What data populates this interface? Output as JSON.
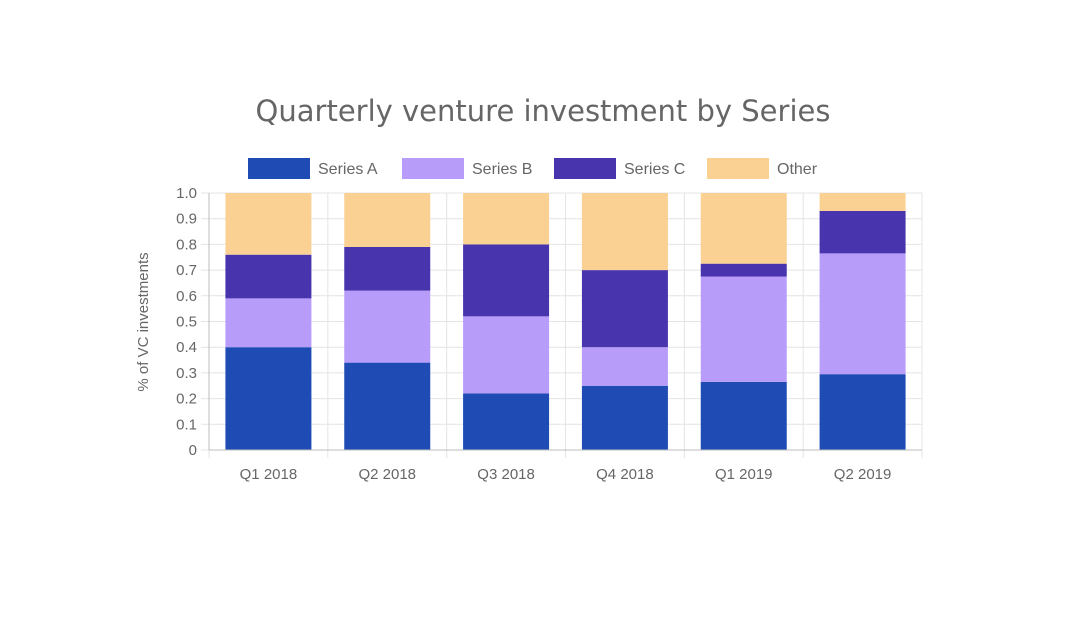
{
  "chart_data": {
    "type": "bar",
    "stacked": true,
    "title": "Quarterly venture investment by Series",
    "ylabel": "% of VC investments",
    "xlabel": "",
    "categories": [
      "Q1 2018",
      "Q2 2018",
      "Q3 2018",
      "Q4 2018",
      "Q1 2019",
      "Q2 2019"
    ],
    "ylim": [
      0,
      1.0
    ],
    "yticks": [
      "0",
      "0.1",
      "0.2",
      "0.3",
      "0.4",
      "0.5",
      "0.6",
      "0.7",
      "0.8",
      "0.9",
      "1.0"
    ],
    "grid": true,
    "legend_position": "top",
    "series": [
      {
        "name": "Series A",
        "color": "#1f4bb4",
        "values": [
          0.4,
          0.34,
          0.22,
          0.25,
          0.265,
          0.295
        ]
      },
      {
        "name": "Series B",
        "color": "#b89cf9",
        "values": [
          0.19,
          0.28,
          0.3,
          0.15,
          0.41,
          0.47
        ]
      },
      {
        "name": "Series C",
        "color": "#4835ae",
        "values": [
          0.17,
          0.17,
          0.28,
          0.3,
          0.05,
          0.165
        ]
      },
      {
        "name": "Other",
        "color": "#fad193",
        "values": [
          0.24,
          0.21,
          0.2,
          0.3,
          0.275,
          0.07
        ]
      }
    ]
  }
}
